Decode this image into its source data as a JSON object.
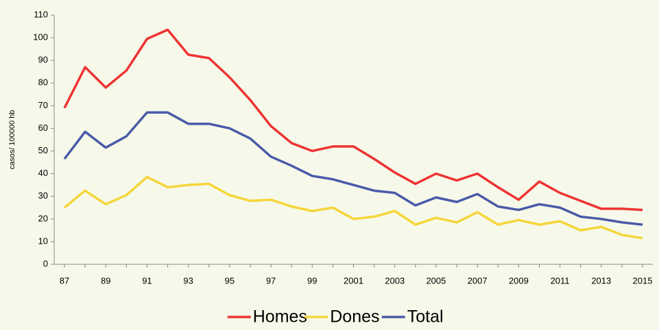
{
  "chart_data": {
    "type": "line",
    "y_label": "casos/ 100000 hb",
    "categories": [
      "87",
      null,
      "89",
      null,
      "91",
      null,
      "93",
      null,
      "95",
      null,
      "97",
      null,
      "99",
      null,
      "2001",
      null,
      "2003",
      null,
      "2005",
      null,
      "2007",
      null,
      "2009",
      null,
      "2011",
      null,
      "2013",
      null,
      "2015"
    ],
    "series": [
      {
        "name": "Homes",
        "color": "#ee3333",
        "values": [
          69,
          87,
          78,
          85.5,
          99.5,
          103.5,
          92.5,
          91,
          82.5,
          72.5,
          61,
          53.5,
          50,
          52,
          52,
          46.5,
          40.5,
          35.5,
          40,
          37,
          40,
          34,
          28.5,
          36.5,
          31.5,
          28,
          24.5,
          24.5,
          24
        ]
      },
      {
        "name": "Dones",
        "color": "#f5d53a",
        "values": [
          25,
          32.5,
          26.5,
          30.5,
          38.5,
          34,
          35,
          35.5,
          30.5,
          28,
          28.5,
          25.5,
          23.5,
          25,
          20,
          21,
          23.5,
          17.5,
          20.5,
          18.5,
          23,
          17.5,
          19.5,
          17.5,
          19,
          15,
          16.5,
          13,
          11.5
        ]
      },
      {
        "name": "Total",
        "color": "#4a5aa8",
        "values": [
          46.5,
          58.5,
          51.5,
          56.5,
          67,
          67,
          62,
          62,
          60,
          55.5,
          47.5,
          43.5,
          39,
          37.5,
          35,
          32.5,
          31.5,
          26,
          29.5,
          27.5,
          31,
          25.5,
          24,
          26.5,
          25,
          21,
          20,
          18.5,
          17.5
        ]
      }
    ],
    "ylim": [
      0,
      110
    ],
    "yticks": [
      0,
      10,
      20,
      30,
      40,
      50,
      60,
      70,
      80,
      90,
      100,
      110
    ],
    "grid": false,
    "legend": "bottom"
  }
}
